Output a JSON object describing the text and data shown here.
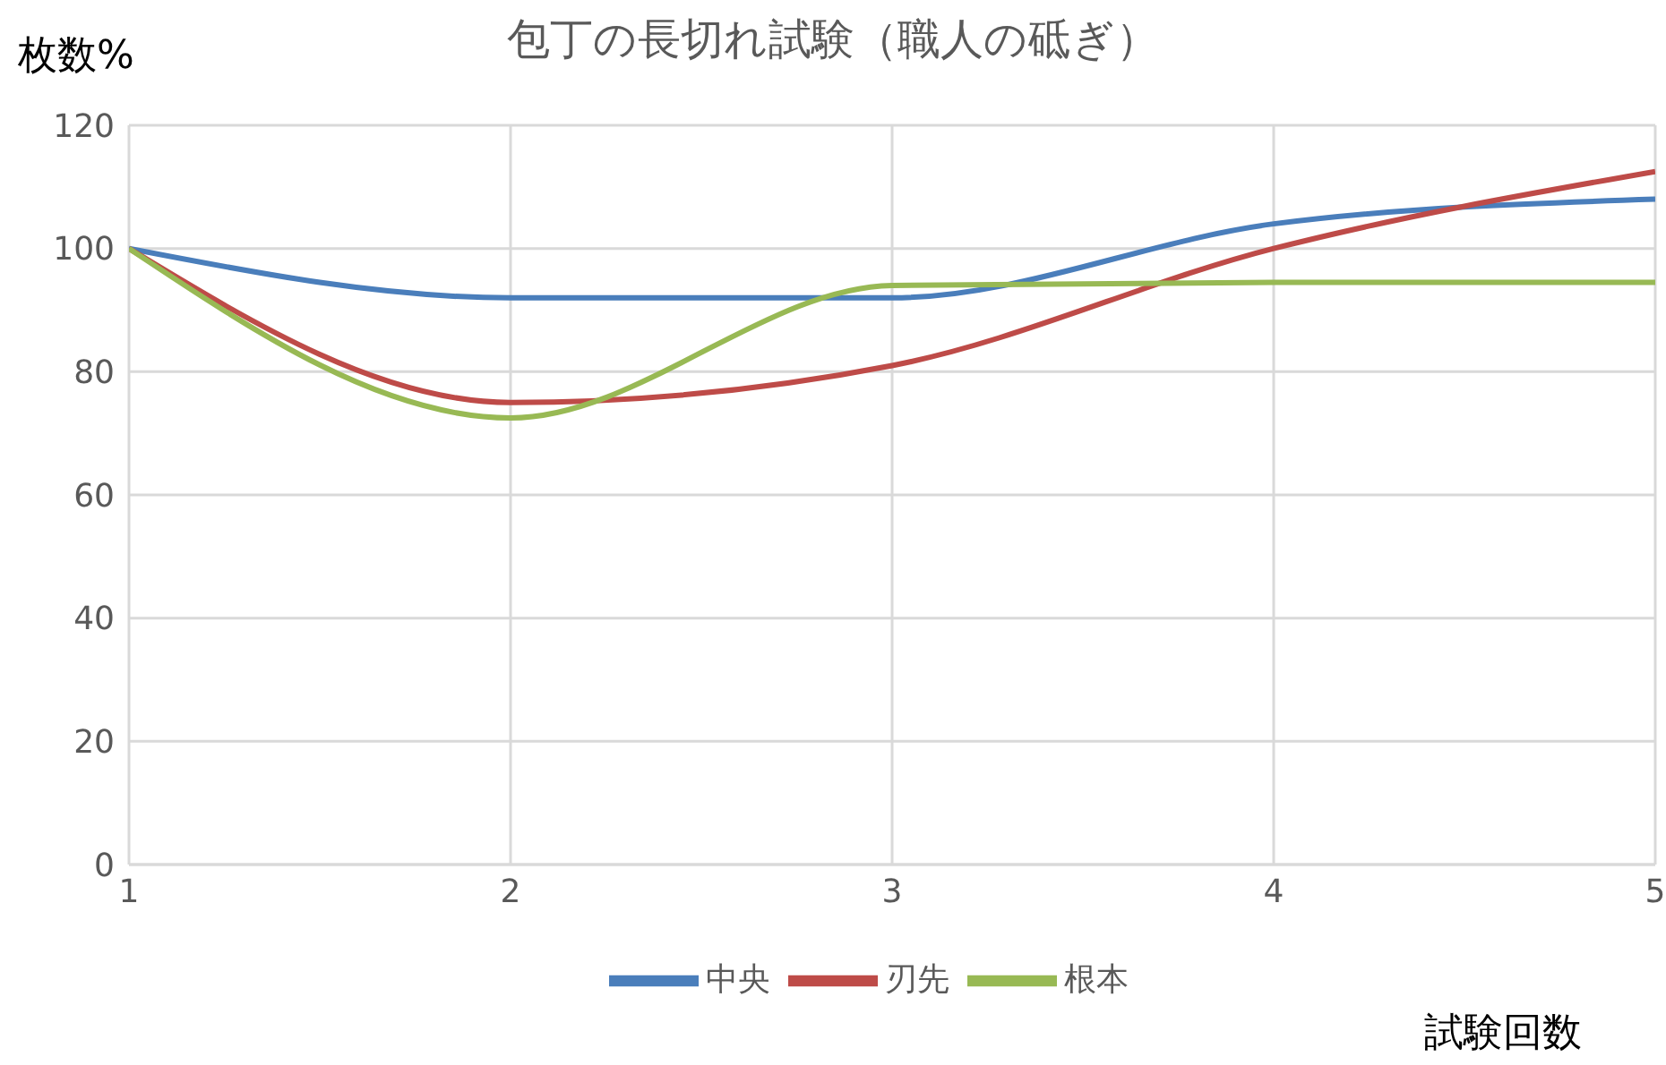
{
  "chart_data": {
    "type": "line",
    "title": "包丁の長切れ試験（職人の砥ぎ）",
    "xlabel": "試験回数",
    "ylabel": "枚数%",
    "x": [
      1,
      2,
      3,
      4,
      5
    ],
    "series": [
      {
        "name": "中央",
        "color": "#4a7ebb",
        "values": [
          100,
          92,
          92,
          104,
          108
        ]
      },
      {
        "name": "刃先",
        "color": "#be4b48",
        "values": [
          100,
          75,
          81,
          100,
          112.5
        ]
      },
      {
        "name": "根本",
        "color": "#98b954",
        "values": [
          100,
          72.5,
          94,
          94.5,
          94.5
        ]
      }
    ],
    "xlim": [
      1,
      5
    ],
    "xticks": [
      1,
      2,
      3,
      4,
      5
    ],
    "ylim": [
      0,
      120
    ],
    "yticks": [
      0,
      20,
      40,
      60,
      80,
      100,
      120
    ],
    "grid": true,
    "legend": "bottom",
    "marker": "none",
    "line_style": "solid"
  }
}
